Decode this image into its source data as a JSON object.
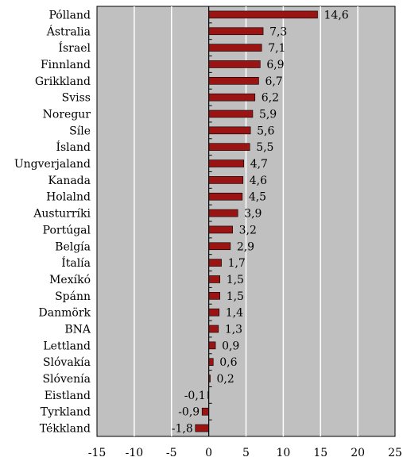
{
  "chart_data": {
    "type": "bar",
    "orientation": "horizontal",
    "title": "",
    "xlabel": "",
    "ylabel": "",
    "xlim": [
      -15,
      25
    ],
    "xticks": [
      -15,
      -10,
      -5,
      0,
      5,
      10,
      15,
      20,
      25
    ],
    "grid": true,
    "legend": "none",
    "colors": {
      "bar": "#9b1414",
      "bar_edge": "#000000",
      "plot_background": "#c0c0c0",
      "grid": "#ffffff"
    },
    "categories": [
      "Pólland",
      "Ástralia",
      "Ísrael",
      "Finnland",
      "Grikkland",
      "Sviss",
      "Noregur",
      "Síle",
      "Ísland",
      "Ungverjaland",
      "Kanada",
      "Holalnd",
      "Austurríki",
      "Portúgal",
      "Belgía",
      "Ítalía",
      "Mexíkó",
      "Spánn",
      "Danmörk",
      "BNA",
      "Lettland",
      "Slóvakía",
      "Slóvenía",
      "Eistland",
      "Tyrkland",
      "Tékkland"
    ],
    "values": [
      14.6,
      7.3,
      7.1,
      6.9,
      6.7,
      6.2,
      5.9,
      5.6,
      5.5,
      4.7,
      4.6,
      4.5,
      3.9,
      3.2,
      2.9,
      1.7,
      1.5,
      1.5,
      1.4,
      1.3,
      0.9,
      0.6,
      0.2,
      -0.1,
      -0.9,
      -1.8
    ],
    "value_labels": [
      "14,6",
      "7,3",
      "7,1",
      "6,9",
      "6,7",
      "6,2",
      "5,9",
      "5,6",
      "5,5",
      "4,7",
      "4,6",
      "4,5",
      "3,9",
      "3,2",
      "2,9",
      "1,7",
      "1,5",
      "1,5",
      "1,4",
      "1,3",
      "0,9",
      "0,6",
      "0,2",
      "-0,1",
      "-0,9",
      "-1,8"
    ]
  }
}
